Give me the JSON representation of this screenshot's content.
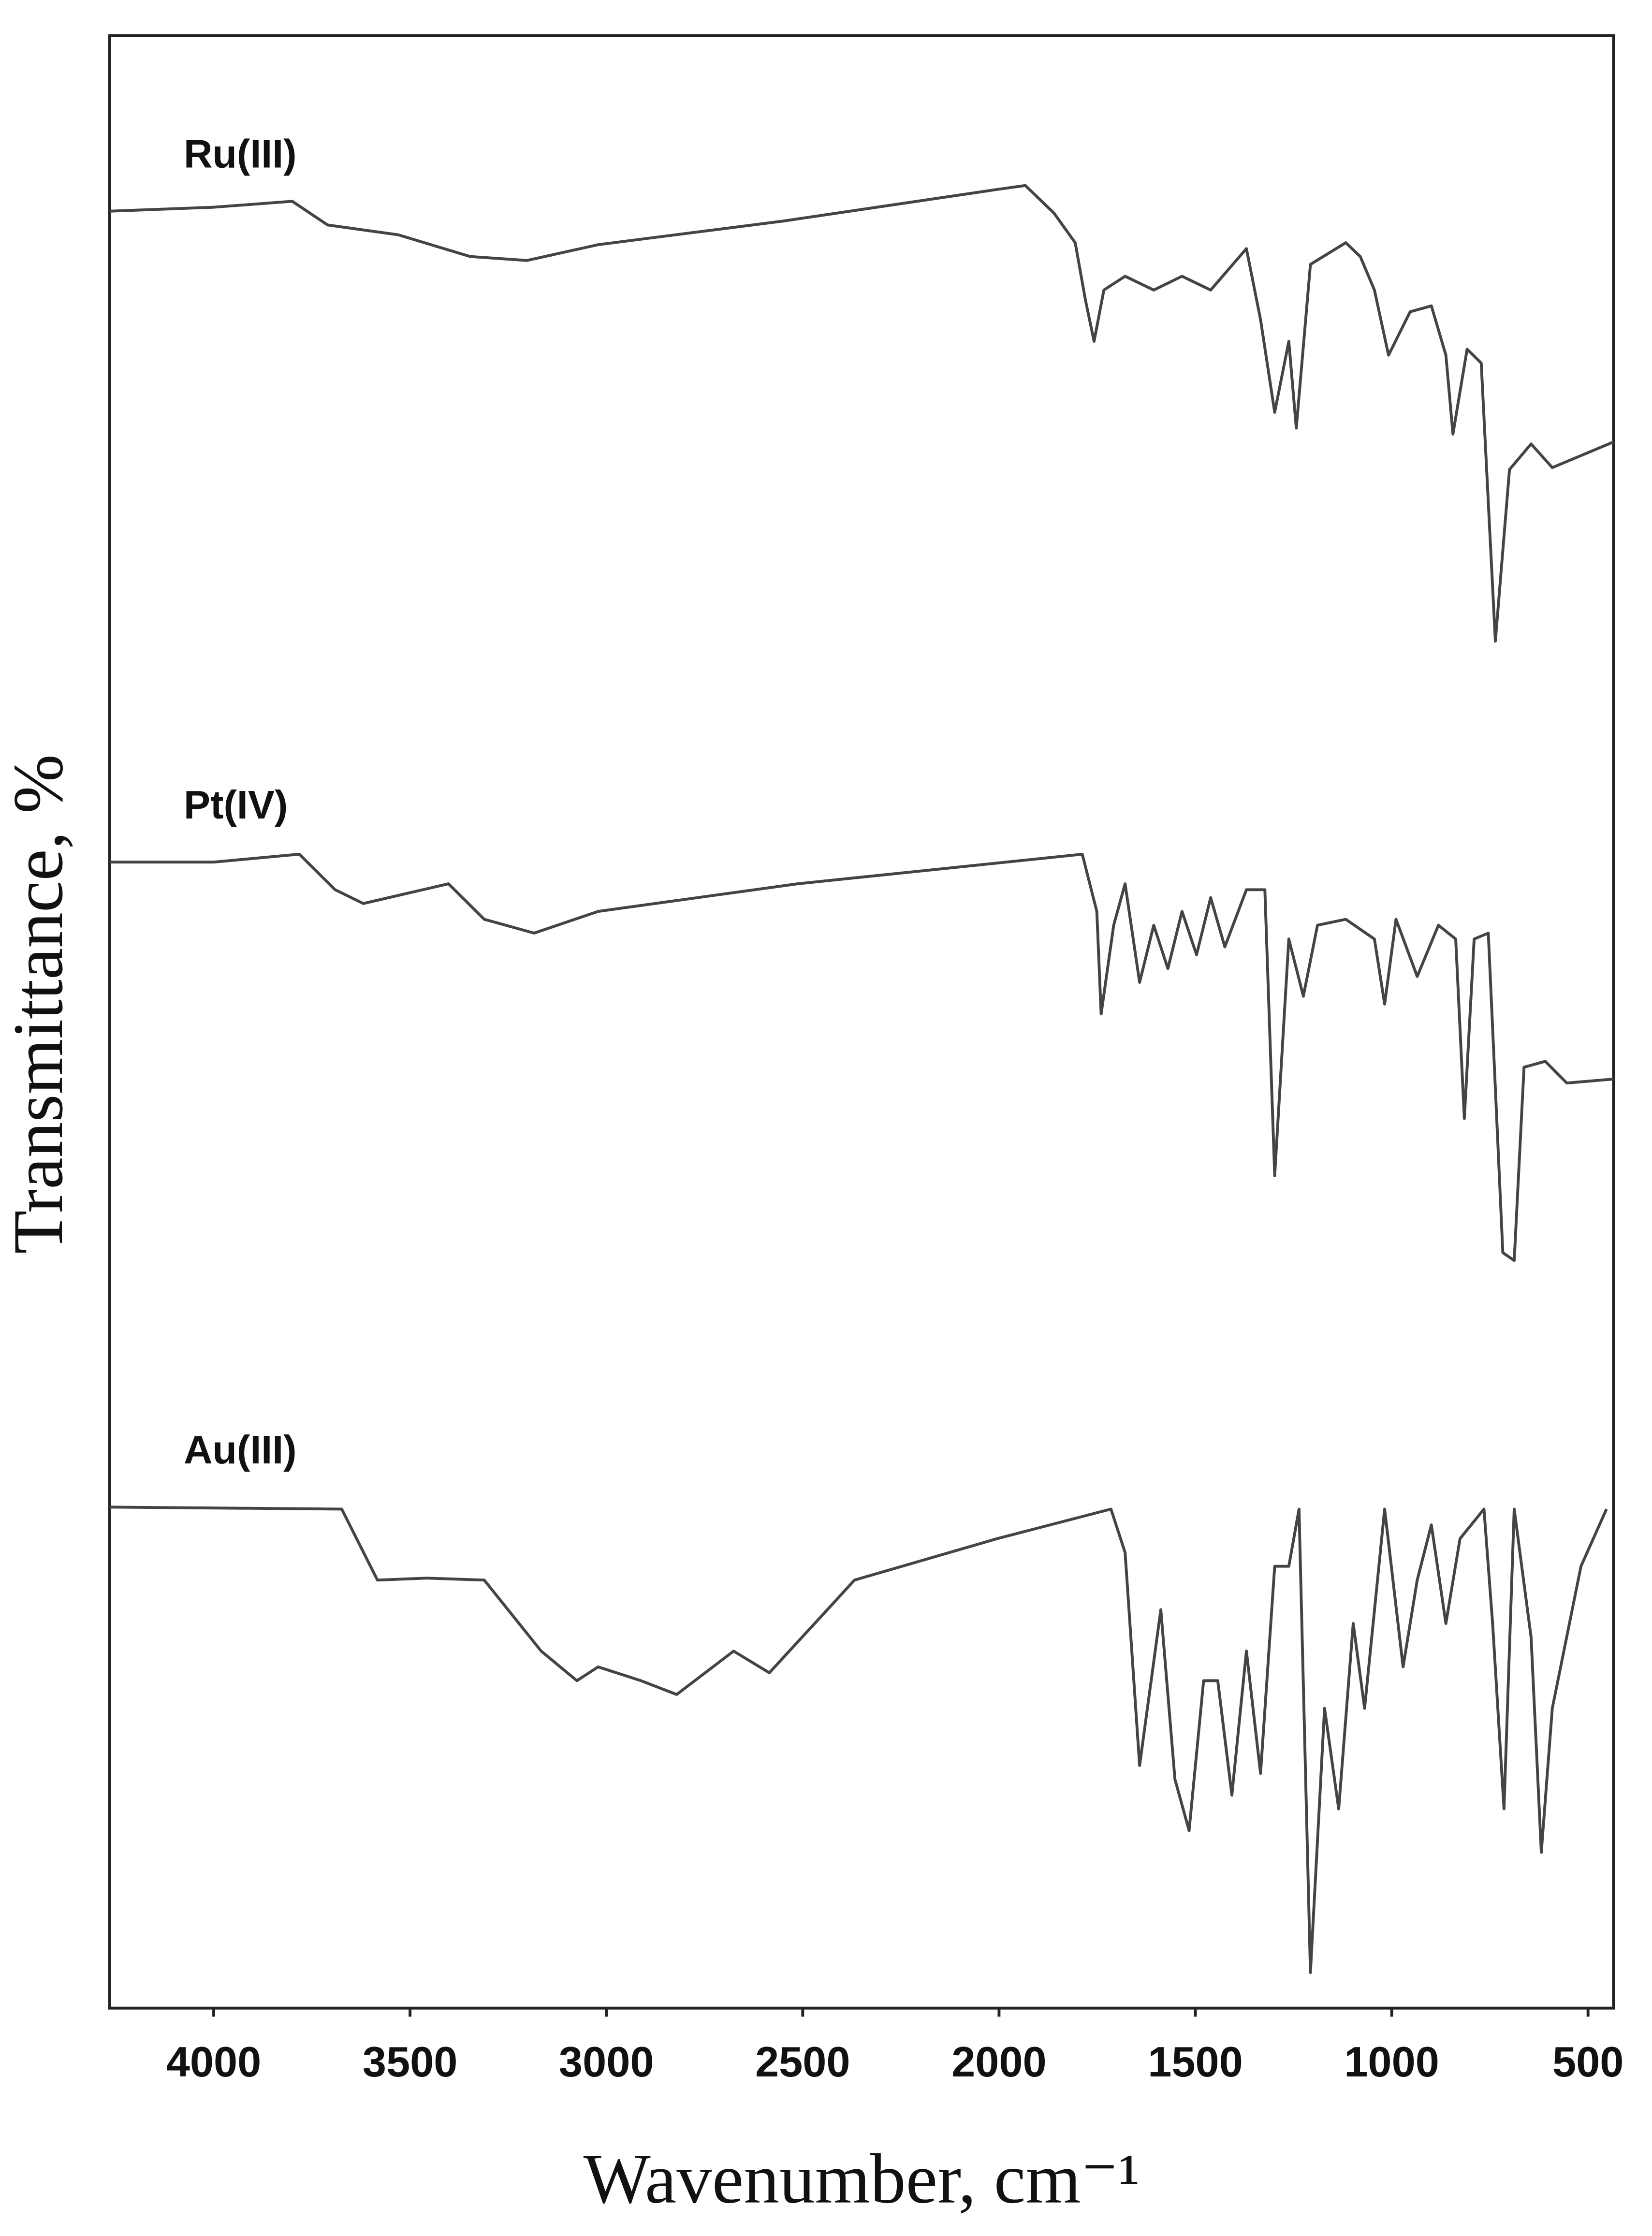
{
  "chart_data": {
    "type": "line",
    "x_label": "Wavenumber, cm⁻¹",
    "y_label": "Transmittance, %",
    "xlim": [
      4265,
      435
    ],
    "xticks": [
      4000,
      3500,
      3000,
      2500,
      2000,
      1500,
      1000,
      500
    ],
    "ylim": [
      0,
      100
    ],
    "series": [
      {
        "name": "Ru(III)",
        "color": "#444444",
        "x": [
          4265,
          4000,
          3800,
          3710,
          3530,
          3347,
          3202,
          3021,
          2549,
          2005,
          1933,
          1860,
          1806,
          1780,
          1758,
          1733,
          1679,
          1606,
          1534,
          1461,
          1370,
          1334,
          1298,
          1262,
          1243,
          1207,
          1117,
          1080,
          1044,
          1008,
          953,
          899,
          862,
          844,
          808,
          772,
          736,
          700,
          645,
          591,
          435
        ],
        "values": [
          91.1,
          91.3,
          91.6,
          90.4,
          89.9,
          88.8,
          88.6,
          89.4,
          90.6,
          92.2,
          92.4,
          91.0,
          89.5,
          86.6,
          84.5,
          87.1,
          87.8,
          87.1,
          87.8,
          87.1,
          89.2,
          85.6,
          80.9,
          84.5,
          80.1,
          88.4,
          89.5,
          88.8,
          87.1,
          83.8,
          86.0,
          86.3,
          83.8,
          79.8,
          84.1,
          83.4,
          69.3,
          78.0,
          79.3,
          78.1,
          79.4
        ]
      },
      {
        "name": "Pt(IV)",
        "color": "#444444",
        "x": [
          4265,
          4000,
          3782,
          3691,
          3619,
          3402,
          3311,
          3184,
          3021,
          2513,
          1788,
          1751,
          1740,
          1708,
          1679,
          1642,
          1606,
          1570,
          1534,
          1497,
          1461,
          1425,
          1370,
          1323,
          1298,
          1262,
          1225,
          1189,
          1117,
          1044,
          1018,
          989,
          935,
          881,
          837,
          815,
          790,
          754,
          717,
          688,
          663,
          609,
          554,
          435
        ],
        "values": [
          58.1,
          58.1,
          58.5,
          56.7,
          56.0,
          57.0,
          55.2,
          54.5,
          55.6,
          57.0,
          58.5,
          55.6,
          50.4,
          54.9,
          57.0,
          52.0,
          54.9,
          52.7,
          55.6,
          53.4,
          56.3,
          53.8,
          56.7,
          56.7,
          42.2,
          54.2,
          51.3,
          54.9,
          55.2,
          54.2,
          50.9,
          55.2,
          52.3,
          54.9,
          54.2,
          45.1,
          54.2,
          54.5,
          38.3,
          37.9,
          47.7,
          48.0,
          46.9,
          47.1
        ]
      },
      {
        "name": "Au(III)",
        "color": "#444444",
        "x": [
          4265,
          3674,
          3583,
          3456,
          3311,
          3166,
          3075,
          3021,
          2912,
          2821,
          2676,
          2585,
          2368,
          2005,
          1715,
          1679,
          1642,
          1588,
          1552,
          1516,
          1479,
          1443,
          1407,
          1370,
          1334,
          1298,
          1262,
          1236,
          1207,
          1171,
          1135,
          1098,
          1069,
          1018,
          971,
          935,
          899,
          862,
          826,
          765,
          743,
          714,
          688,
          645,
          619,
          591,
          518,
          453
        ],
        "values": [
          25.4,
          25.3,
          21.7,
          21.8,
          21.7,
          18.1,
          16.6,
          17.3,
          16.6,
          15.9,
          18.1,
          17.0,
          21.7,
          23.8,
          25.3,
          23.1,
          12.3,
          20.2,
          11.6,
          9.0,
          16.6,
          16.6,
          10.8,
          18.1,
          11.9,
          22.4,
          22.4,
          25.3,
          1.8,
          15.2,
          10.1,
          19.5,
          15.2,
          25.3,
          17.3,
          21.7,
          24.5,
          19.5,
          23.8,
          25.3,
          19.5,
          10.1,
          25.3,
          18.8,
          7.9,
          15.2,
          22.4,
          25.3
        ]
      }
    ]
  }
}
